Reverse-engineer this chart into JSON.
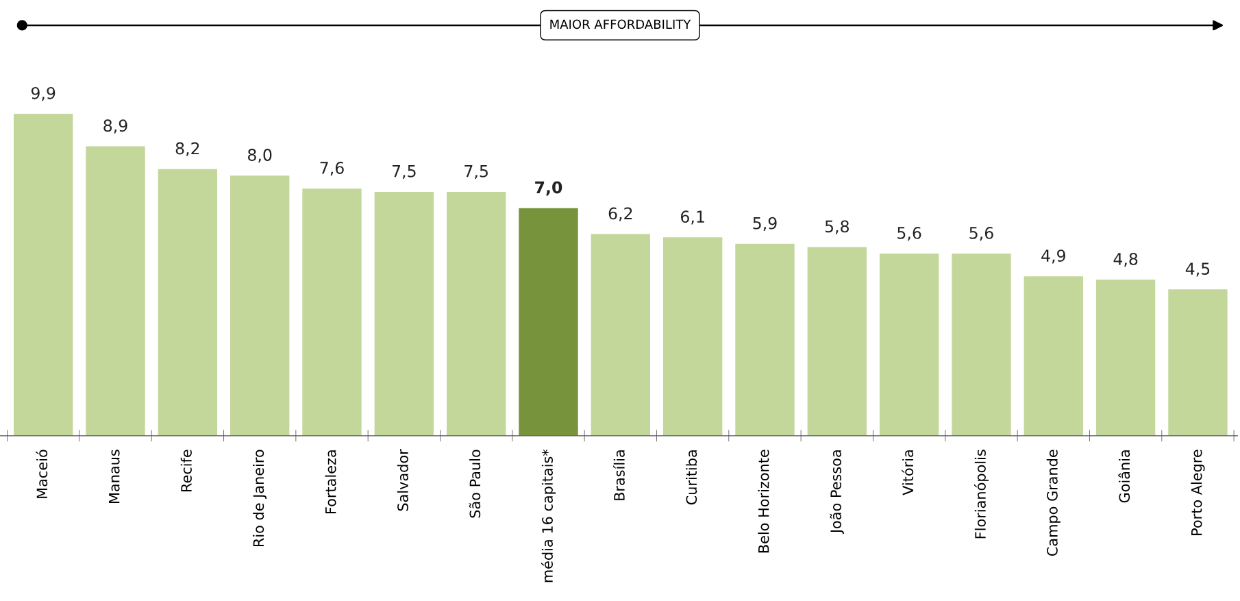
{
  "chart_data": {
    "type": "bar",
    "categories": [
      "Maceió",
      "Manaus",
      "Recife",
      "Rio de Janeiro",
      "Fortaleza",
      "Salvador",
      "São Paulo",
      "média 16 capitais*",
      "Brasília",
      "Curitiba",
      "Belo Horizonte",
      "João Pessoa",
      "Vitória",
      "Florianópolis",
      "Campo Grande",
      "Goiânia",
      "Porto Alegre"
    ],
    "values": [
      9.9,
      8.9,
      8.2,
      8.0,
      7.6,
      7.5,
      7.5,
      7.0,
      6.2,
      6.1,
      5.9,
      5.8,
      5.6,
      5.6,
      4.9,
      4.8,
      4.5
    ],
    "value_labels": [
      "9,9",
      "8,9",
      "8,2",
      "8,0",
      "7,6",
      "7,5",
      "7,5",
      "7,0",
      "6,2",
      "6,1",
      "5,9",
      "5,8",
      "5,6",
      "5,6",
      "4,9",
      "4,8",
      "4,5"
    ],
    "colors": [
      "#c4d79b",
      "#c4d79b",
      "#c4d79b",
      "#c4d79b",
      "#c4d79b",
      "#c4d79b",
      "#c4d79b",
      "#77933c",
      "#c4d79b",
      "#c4d79b",
      "#c4d79b",
      "#c4d79b",
      "#c4d79b",
      "#c4d79b",
      "#c4d79b",
      "#c4d79b",
      "#c4d79b"
    ],
    "annotations": [
      "MAIOR AFFORDABILITY"
    ],
    "grid": false,
    "legend": false
  }
}
